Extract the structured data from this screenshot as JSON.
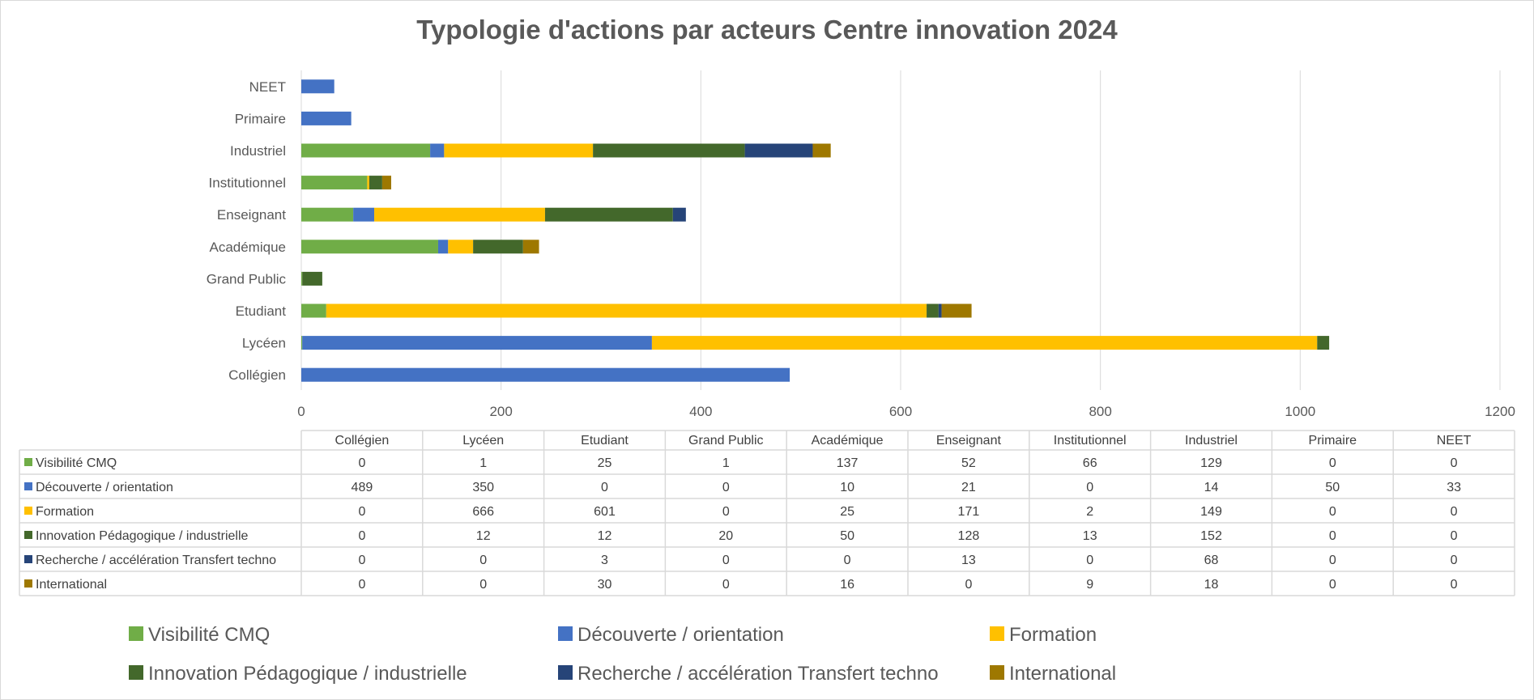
{
  "chart_data": {
    "type": "bar",
    "orientation": "horizontal",
    "stacked": true,
    "title": "Typologie d'actions par acteurs Centre innovation 2024",
    "categories": [
      "Collégien",
      "Lycéen",
      "Etudiant",
      "Grand Public",
      "Académique",
      "Enseignant",
      "Institutionnel",
      "Industriel",
      "Primaire",
      "NEET"
    ],
    "series": [
      {
        "name": "Visibilité CMQ",
        "color": "#70ad47",
        "values": [
          0,
          1,
          25,
          1,
          137,
          52,
          66,
          129,
          0,
          0
        ]
      },
      {
        "name": "Découverte / orientation",
        "color": "#4472c4",
        "values": [
          489,
          350,
          0,
          0,
          10,
          21,
          0,
          14,
          50,
          33
        ]
      },
      {
        "name": "Formation",
        "color": "#ffc000",
        "values": [
          0,
          666,
          601,
          0,
          25,
          171,
          2,
          149,
          0,
          0
        ]
      },
      {
        "name": "Innovation Pédagogique / industrielle",
        "color": "#43682b",
        "values": [
          0,
          12,
          12,
          20,
          50,
          128,
          13,
          152,
          0,
          0
        ]
      },
      {
        "name": "Recherche / accélération Transfert techno",
        "color": "#264478",
        "values": [
          0,
          0,
          3,
          0,
          0,
          13,
          0,
          68,
          0,
          0
        ]
      },
      {
        "name": "International",
        "color": "#9e7800",
        "values": [
          0,
          0,
          30,
          0,
          16,
          0,
          9,
          18,
          0,
          0
        ]
      }
    ],
    "xlim": [
      0,
      1200
    ],
    "xticks": [
      "0",
      "200",
      "400",
      "600",
      "800",
      "1000",
      "1200"
    ],
    "grid": true,
    "data_table": true,
    "legend_position": "bottom"
  }
}
